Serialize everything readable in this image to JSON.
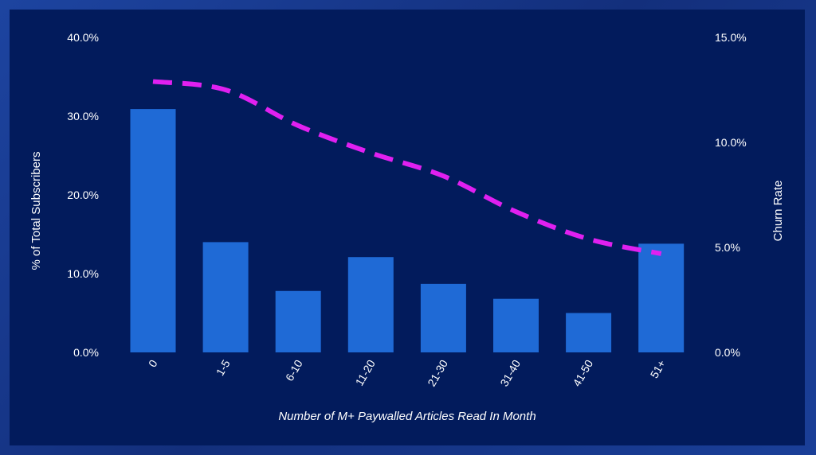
{
  "chart_data": {
    "type": "bar",
    "categories": [
      "0",
      "1-5",
      "6-10",
      "11-20",
      "21-30",
      "31-40",
      "41-50",
      "51+"
    ],
    "series": [
      {
        "values": [
          30.9,
          14.0,
          7.8,
          12.1,
          8.7,
          6.8,
          5.0,
          13.8
        ],
        "axis": "left",
        "type": "bar",
        "color": "#1f6ad6"
      },
      {
        "values": [
          12.9,
          12.5,
          10.8,
          9.5,
          8.4,
          6.7,
          5.4,
          4.7
        ],
        "axis": "right",
        "type": "line",
        "style": "dashed",
        "color": "#e020f0"
      }
    ],
    "xlabel": "Number of M+ Paywalled Articles Read In Month",
    "ylabel": "% of Total Subscribers",
    "y2label": "Churn Rate",
    "ylim": [
      0,
      40
    ],
    "y2lim": [
      0,
      15
    ],
    "yticks": [
      "0.0%",
      "10.0%",
      "20.0%",
      "30.0%",
      "40.0%"
    ],
    "y2ticks": [
      "0.0%",
      "5.0%",
      "10.0%",
      "15.0%"
    ],
    "grid": false,
    "legend": "none"
  }
}
